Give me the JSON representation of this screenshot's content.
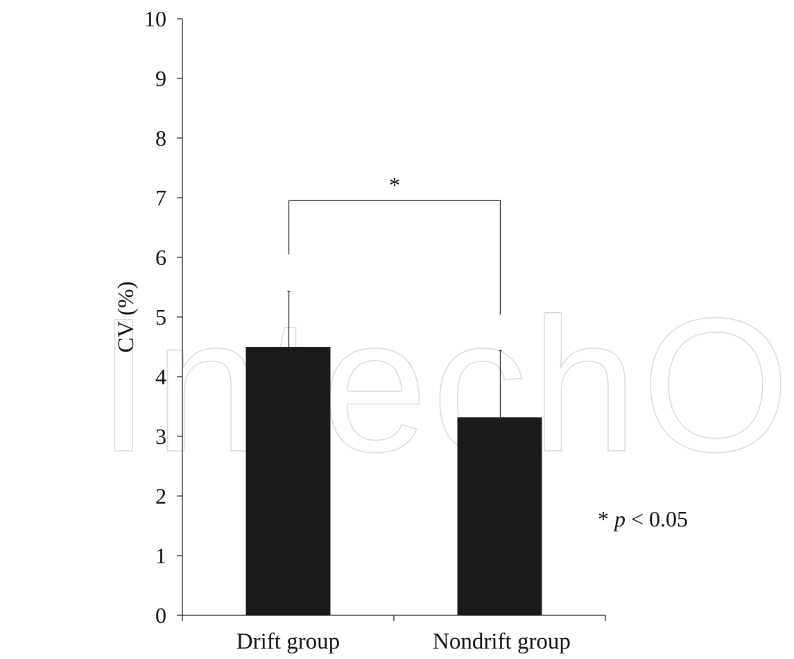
{
  "chart_data": {
    "type": "bar",
    "categories": [
      "Drift group",
      "Nondrift group"
    ],
    "values": [
      4.5,
      3.32
    ],
    "error_plus": [
      0.93,
      1.12
    ],
    "ylabel": "CV (%)",
    "xlabel": "",
    "ylim": [
      0,
      10
    ],
    "yticks": [
      0,
      1,
      2,
      3,
      4,
      5,
      6,
      7,
      8,
      9,
      10
    ],
    "bar_color": "#1a1a1a",
    "grid": false,
    "significance": {
      "marker": "*",
      "between": [
        0,
        1
      ],
      "bracket_y": 6.95
    },
    "annotation": {
      "prefix": "* ",
      "italic": "p",
      "suffix": " < 0.05"
    }
  },
  "watermark": {
    "text": "IntechOpen",
    "color": "#d9d9d9"
  }
}
